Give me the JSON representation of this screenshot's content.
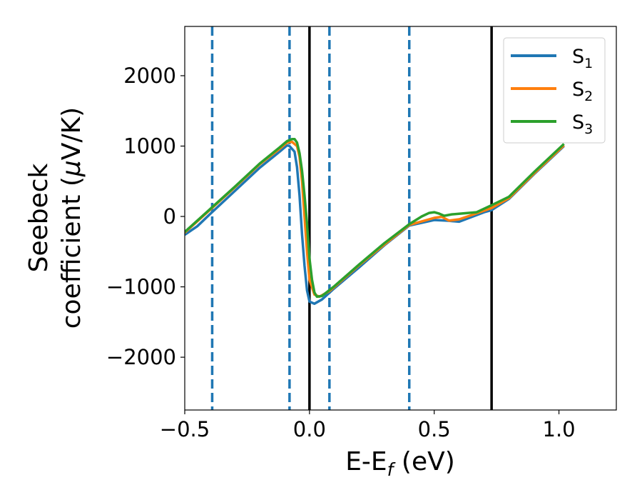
{
  "chart_data": {
    "type": "line",
    "title": "",
    "xlabel": {
      "main": "E-E",
      "sub": "f",
      "unit": " (eV)"
    },
    "ylabel": {
      "line1": "Seebeck",
      "line2_prefix": "coefficient  (",
      "mu": "μ",
      "line2_suffix": "V/K)"
    },
    "xlim": [
      -0.5,
      1.23
    ],
    "ylim": [
      -2750,
      2700
    ],
    "xticks": [
      {
        "value": -0.5,
        "label": "−0.5"
      },
      {
        "value": 0.0,
        "label": "0.0"
      },
      {
        "value": 0.5,
        "label": "0.5"
      },
      {
        "value": 1.0,
        "label": "1.0"
      }
    ],
    "yticks": [
      {
        "value": -2000,
        "label": "−2000"
      },
      {
        "value": -1000,
        "label": "−1000"
      },
      {
        "value": 0,
        "label": "0"
      },
      {
        "value": 1000,
        "label": "1000"
      },
      {
        "value": 2000,
        "label": "2000"
      }
    ],
    "grid": false,
    "legend_position": "top-right",
    "vlines_dashed": {
      "color": "#1f77b4",
      "x": [
        -0.39,
        -0.08,
        0.08,
        0.4
      ]
    },
    "vlines_solid": {
      "color": "#000000",
      "x": [
        0.0,
        0.73
      ]
    },
    "series": [
      {
        "name": "S",
        "sub": "1",
        "color": "#1f77b4",
        "points": [
          [
            -0.5,
            -260
          ],
          [
            -0.45,
            -140
          ],
          [
            -0.4,
            30
          ],
          [
            -0.3,
            360
          ],
          [
            -0.2,
            690
          ],
          [
            -0.12,
            920
          ],
          [
            -0.09,
            1010
          ],
          [
            -0.08,
            1000
          ],
          [
            -0.06,
            920
          ],
          [
            -0.05,
            700
          ],
          [
            -0.04,
            300
          ],
          [
            -0.03,
            -250
          ],
          [
            -0.02,
            -700
          ],
          [
            -0.01,
            -1050
          ],
          [
            0.0,
            -1210
          ],
          [
            0.02,
            -1240
          ],
          [
            0.05,
            -1180
          ],
          [
            0.1,
            -1020
          ],
          [
            0.2,
            -720
          ],
          [
            0.3,
            -410
          ],
          [
            0.4,
            -130
          ],
          [
            0.5,
            -50
          ],
          [
            0.55,
            -60
          ],
          [
            0.6,
            -75
          ],
          [
            0.7,
            60
          ],
          [
            0.73,
            90
          ],
          [
            0.8,
            250
          ],
          [
            0.9,
            600
          ],
          [
            1.02,
            1000
          ]
        ]
      },
      {
        "name": "S",
        "sub": "2",
        "color": "#ff7f0e",
        "points": [
          [
            -0.5,
            -230
          ],
          [
            -0.4,
            90
          ],
          [
            -0.3,
            410
          ],
          [
            -0.2,
            740
          ],
          [
            -0.12,
            960
          ],
          [
            -0.09,
            1050
          ],
          [
            -0.07,
            1060
          ],
          [
            -0.05,
            1000
          ],
          [
            -0.04,
            850
          ],
          [
            -0.03,
            500
          ],
          [
            -0.02,
            0
          ],
          [
            -0.01,
            -500
          ],
          [
            0.0,
            -900
          ],
          [
            0.02,
            -1110
          ],
          [
            0.04,
            -1140
          ],
          [
            0.08,
            -1060
          ],
          [
            0.1,
            -1000
          ],
          [
            0.2,
            -690
          ],
          [
            0.3,
            -400
          ],
          [
            0.4,
            -120
          ],
          [
            0.5,
            -20
          ],
          [
            0.53,
            -5
          ],
          [
            0.56,
            -60
          ],
          [
            0.6,
            -40
          ],
          [
            0.65,
            20
          ],
          [
            0.73,
            120
          ],
          [
            0.8,
            260
          ],
          [
            0.9,
            610
          ],
          [
            1.02,
            1010
          ]
        ]
      },
      {
        "name": "S",
        "sub": "3",
        "color": "#2ca02c",
        "points": [
          [
            -0.5,
            -220
          ],
          [
            -0.4,
            100
          ],
          [
            -0.3,
            420
          ],
          [
            -0.2,
            750
          ],
          [
            -0.12,
            980
          ],
          [
            -0.09,
            1070
          ],
          [
            -0.07,
            1100
          ],
          [
            -0.06,
            1100
          ],
          [
            -0.05,
            1050
          ],
          [
            -0.04,
            900
          ],
          [
            -0.03,
            650
          ],
          [
            -0.02,
            300
          ],
          [
            -0.01,
            -100
          ],
          [
            0.0,
            -600
          ],
          [
            0.01,
            -900
          ],
          [
            0.02,
            -1080
          ],
          [
            0.03,
            -1140
          ],
          [
            0.05,
            -1130
          ],
          [
            0.1,
            -990
          ],
          [
            0.2,
            -680
          ],
          [
            0.3,
            -380
          ],
          [
            0.4,
            -110
          ],
          [
            0.45,
            0
          ],
          [
            0.48,
            50
          ],
          [
            0.5,
            60
          ],
          [
            0.52,
            40
          ],
          [
            0.54,
            10
          ],
          [
            0.57,
            30
          ],
          [
            0.62,
            45
          ],
          [
            0.67,
            60
          ],
          [
            0.73,
            160
          ],
          [
            0.8,
            280
          ],
          [
            0.9,
            630
          ],
          [
            1.02,
            1030
          ]
        ]
      }
    ]
  }
}
